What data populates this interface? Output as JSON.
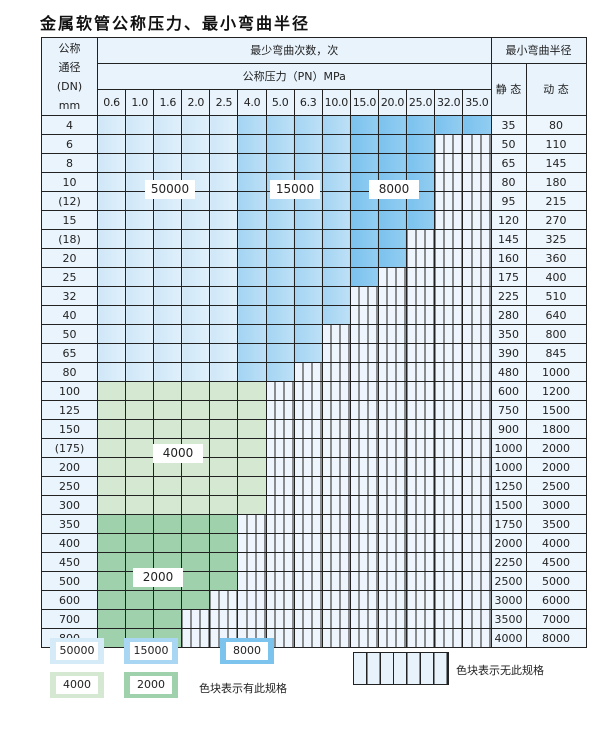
{
  "title": "金属软管公称压力、最小弯曲半径",
  "header": {
    "dn_label": [
      "公称",
      "通径",
      "(DN)",
      "mm"
    ],
    "bend_count": "最少弯曲次数，次",
    "pressure": "公称压力（PN）MPa",
    "min_radius": "最小弯曲半径",
    "static": "静 态",
    "dynamic": "动 态",
    "pressures": [
      "0.6",
      "1.0",
      "1.6",
      "2.0",
      "2.5",
      "4.0",
      "5.0",
      "6.3",
      "10.0",
      "15.0",
      "20.0",
      "25.0",
      "32.0",
      "35.0"
    ]
  },
  "colors": {
    "A": "#d6ebf8",
    "B": "#a8d6f3",
    "C": "#7cc4ee",
    "D": "#d4e8d2",
    "E": "#9fd1ad",
    "X": "#eef5fc"
  },
  "zones": {
    "A": "50000",
    "B": "15000",
    "C": "8000",
    "D": "4000",
    "E": "2000"
  },
  "rows": [
    {
      "dn": "4",
      "cells": "AAAAABBBBCCCCC",
      "static": "35",
      "dynamic": "80"
    },
    {
      "dn": "6",
      "cells": "AAAAABBBBCCCXX",
      "static": "50",
      "dynamic": "110"
    },
    {
      "dn": "8",
      "cells": "AAAAABBBBCCCXX",
      "static": "65",
      "dynamic": "145"
    },
    {
      "dn": "10",
      "cells": "AAAAABBBBCCCXX",
      "static": "80",
      "dynamic": "180"
    },
    {
      "dn": "(12)",
      "cells": "AAAAABBBBCCCXX",
      "static": "95",
      "dynamic": "215"
    },
    {
      "dn": "15",
      "cells": "AAAAABBBBCCCXX",
      "static": "120",
      "dynamic": "270"
    },
    {
      "dn": "(18)",
      "cells": "AAAAABBBBCCXXX",
      "static": "145",
      "dynamic": "325"
    },
    {
      "dn": "20",
      "cells": "AAAAABBBBCCXXX",
      "static": "160",
      "dynamic": "360"
    },
    {
      "dn": "25",
      "cells": "AAAAABBBBCXXXX",
      "static": "175",
      "dynamic": "400"
    },
    {
      "dn": "32",
      "cells": "AAAAABBBBXXXXX",
      "static": "225",
      "dynamic": "510"
    },
    {
      "dn": "40",
      "cells": "AAAAABBBBXXXXX",
      "static": "280",
      "dynamic": "640"
    },
    {
      "dn": "50",
      "cells": "AAAAABBBXXXXXX",
      "static": "350",
      "dynamic": "800"
    },
    {
      "dn": "65",
      "cells": "AAAAABBBXXXXXX",
      "static": "390",
      "dynamic": "845"
    },
    {
      "dn": "80",
      "cells": "AAAAABBXXXXXXX",
      "static": "480",
      "dynamic": "1000"
    },
    {
      "dn": "100",
      "cells": "DDDDDDXXXXXXXX",
      "static": "600",
      "dynamic": "1200"
    },
    {
      "dn": "125",
      "cells": "DDDDDDXXXXXXXX",
      "static": "750",
      "dynamic": "1500"
    },
    {
      "dn": "150",
      "cells": "DDDDDDXXXXXXXX",
      "static": "900",
      "dynamic": "1800"
    },
    {
      "dn": "(175)",
      "cells": "DDDDDDXXXXXXXX",
      "static": "1000",
      "dynamic": "2000"
    },
    {
      "dn": "200",
      "cells": "DDDDDDXXXXXXXX",
      "static": "1000",
      "dynamic": "2000"
    },
    {
      "dn": "250",
      "cells": "DDDDDDXXXXXXXX",
      "static": "1250",
      "dynamic": "2500"
    },
    {
      "dn": "300",
      "cells": "DDDDDDXXXXXXXX",
      "static": "1500",
      "dynamic": "3000"
    },
    {
      "dn": "350",
      "cells": "EEEEEXXXXXXXXX",
      "static": "1750",
      "dynamic": "3500"
    },
    {
      "dn": "400",
      "cells": "EEEEEXXXXXXXXX",
      "static": "2000",
      "dynamic": "4000"
    },
    {
      "dn": "450",
      "cells": "EEEEEXXXXXXXXX",
      "static": "2250",
      "dynamic": "4500"
    },
    {
      "dn": "500",
      "cells": "EEEEEXXXXXXXXX",
      "static": "2500",
      "dynamic": "5000"
    },
    {
      "dn": "600",
      "cells": "EEEEXXXXXXXXXX",
      "static": "3000",
      "dynamic": "6000"
    },
    {
      "dn": "700",
      "cells": "EEEXXXXXXXXXXX",
      "static": "3500",
      "dynamic": "7000"
    },
    {
      "dn": "800",
      "cells": "EEEXXXXXXXXXXX",
      "static": "4000",
      "dynamic": "8000"
    }
  ],
  "legend": {
    "has_spec": "色块表示有此规格",
    "no_spec": "色块表示无此规格"
  }
}
